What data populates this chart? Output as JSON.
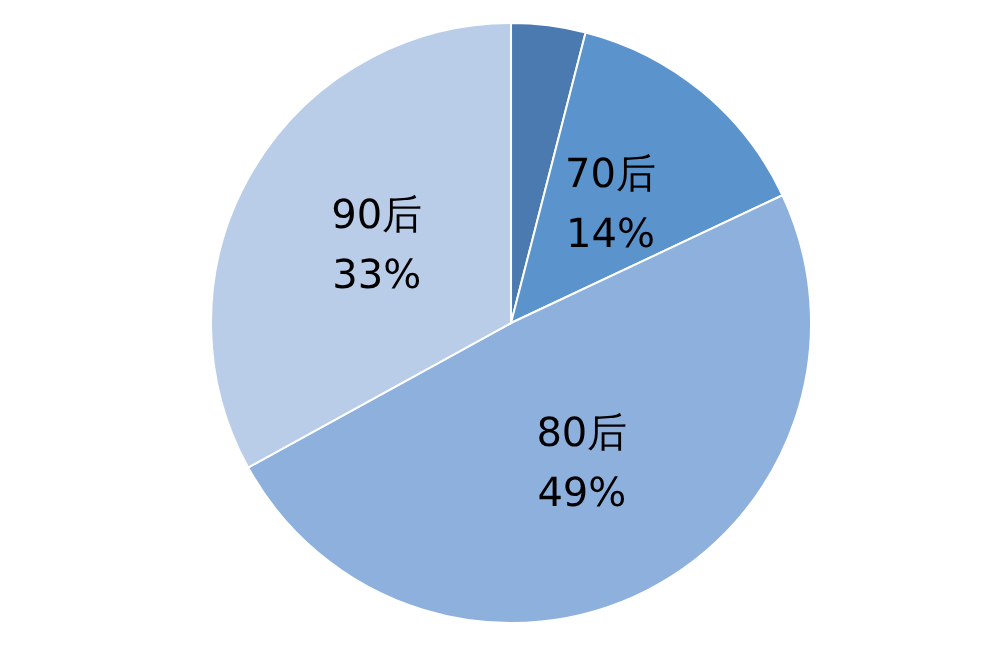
{
  "chart_data": {
    "type": "pie",
    "categories": [
      null,
      "70后",
      "80后",
      "90后"
    ],
    "values": [
      4,
      14,
      49,
      33
    ],
    "colors": [
      "#4a7ab0",
      "#5b93cc",
      "#8db0dd",
      "#b9cde8"
    ],
    "value_labels": [
      null,
      "14%",
      "49%",
      "33%"
    ],
    "legend": false
  }
}
